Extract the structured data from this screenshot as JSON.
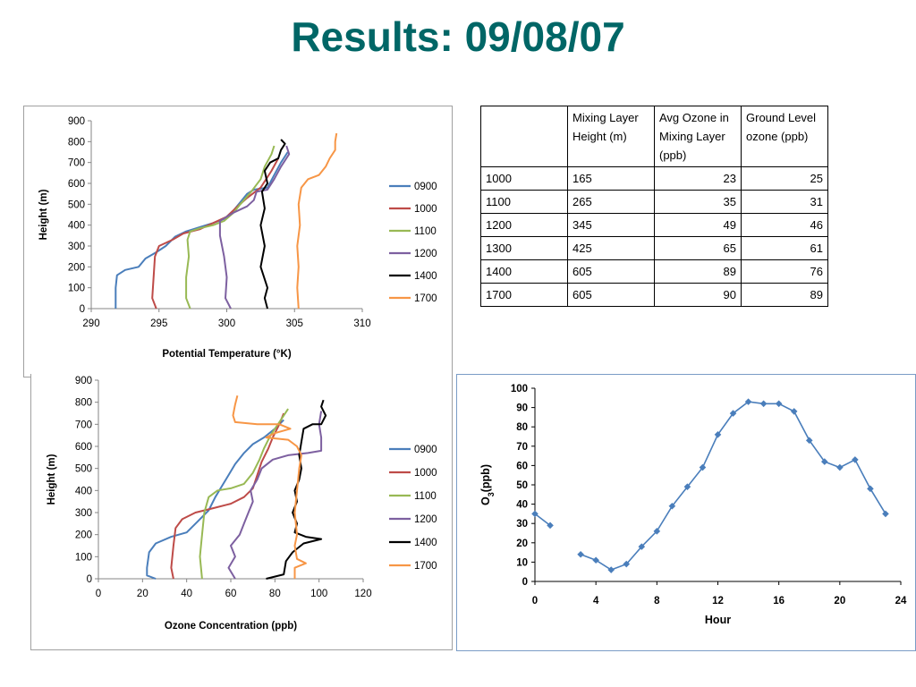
{
  "slide_title": "Results: 09/08/07",
  "table": {
    "headers": [
      "",
      "Mixing Layer Height (m)",
      "Avg Ozone in Mixing Layer (ppb)",
      "Ground Level  ozone (ppb)"
    ],
    "rows": [
      [
        "1000",
        "165",
        "23",
        "25"
      ],
      [
        "1100",
        "265",
        "35",
        "31"
      ],
      [
        "1200",
        "345",
        "49",
        "46"
      ],
      [
        "1300",
        "425",
        "65",
        "61"
      ],
      [
        "1400",
        "605",
        "89",
        "76"
      ],
      [
        "1700",
        "605",
        "90",
        "89"
      ]
    ]
  },
  "chart_data": [
    {
      "type": "line",
      "title": "",
      "xlabel": "Potential Temperature (°K)",
      "ylabel": "Height (m)",
      "xlim": [
        290,
        310
      ],
      "ylim": [
        0,
        900
      ],
      "xticks": [
        "290",
        "295",
        "300",
        "305",
        "310"
      ],
      "yticks": [
        "0",
        "100",
        "200",
        "300",
        "400",
        "500",
        "600",
        "700",
        "800",
        "900"
      ],
      "legend_position": "right",
      "series": [
        {
          "name": "0900",
          "color": "#4a7ebb",
          "points": [
            [
              291.8,
              0
            ],
            [
              291.8,
              100
            ],
            [
              291.9,
              160
            ],
            [
              292.5,
              185
            ],
            [
              293.5,
              200
            ],
            [
              294,
              240
            ],
            [
              294.8,
              270
            ],
            [
              295.5,
              300
            ],
            [
              296.2,
              345
            ],
            [
              297,
              370
            ],
            [
              298,
              390
            ],
            [
              299,
              410
            ],
            [
              299.8,
              430
            ],
            [
              300.5,
              470
            ],
            [
              301,
              510
            ],
            [
              301.5,
              550
            ],
            [
              302,
              570
            ],
            [
              303,
              580
            ],
            [
              303.5,
              640
            ],
            [
              304,
              700
            ],
            [
              304.5,
              750
            ]
          ]
        },
        {
          "name": "1000",
          "color": "#be4b48",
          "points": [
            [
              294.8,
              0
            ],
            [
              294.5,
              50
            ],
            [
              294.6,
              150
            ],
            [
              294.7,
              250
            ],
            [
              295,
              300
            ],
            [
              296,
              330
            ],
            [
              296.8,
              360
            ],
            [
              298,
              380
            ],
            [
              299,
              410
            ],
            [
              300,
              440
            ],
            [
              300.8,
              490
            ],
            [
              301.5,
              530
            ],
            [
              302.5,
              580
            ],
            [
              303.3,
              660
            ],
            [
              303.8,
              720
            ]
          ]
        },
        {
          "name": "1100",
          "color": "#98b954",
          "points": [
            [
              297.3,
              0
            ],
            [
              297,
              50
            ],
            [
              297,
              150
            ],
            [
              297.2,
              250
            ],
            [
              297.1,
              330
            ],
            [
              297.3,
              370
            ],
            [
              298,
              385
            ],
            [
              299,
              400
            ],
            [
              299.8,
              420
            ],
            [
              300.5,
              460
            ],
            [
              301,
              500
            ],
            [
              301.8,
              560
            ],
            [
              302.5,
              620
            ],
            [
              302.8,
              680
            ],
            [
              303.3,
              740
            ],
            [
              303.5,
              780
            ]
          ]
        },
        {
          "name": "1200",
          "color": "#7d60a0",
          "points": [
            [
              300.3,
              0
            ],
            [
              299.9,
              50
            ],
            [
              300,
              150
            ],
            [
              299.8,
              250
            ],
            [
              299.5,
              350
            ],
            [
              299.5,
              420
            ],
            [
              300.5,
              460
            ],
            [
              301.5,
              490
            ],
            [
              302,
              520
            ],
            [
              302.2,
              560
            ],
            [
              303,
              570
            ],
            [
              303.5,
              620
            ],
            [
              304,
              680
            ],
            [
              304.6,
              740
            ],
            [
              304.4,
              780
            ]
          ]
        },
        {
          "name": "1400",
          "color": "#000000",
          "points": [
            [
              303,
              0
            ],
            [
              302.8,
              50
            ],
            [
              303,
              100
            ],
            [
              302.5,
              200
            ],
            [
              302.8,
              300
            ],
            [
              302.5,
              400
            ],
            [
              302.8,
              480
            ],
            [
              302.6,
              560
            ],
            [
              303,
              600
            ],
            [
              302.8,
              660
            ],
            [
              303.2,
              700
            ],
            [
              303.8,
              720
            ],
            [
              304,
              760
            ],
            [
              304.3,
              790
            ],
            [
              304,
              810
            ]
          ]
        },
        {
          "name": "1700",
          "color": "#f79646",
          "points": [
            [
              305.3,
              0
            ],
            [
              305.2,
              100
            ],
            [
              305.3,
              200
            ],
            [
              305.2,
              300
            ],
            [
              305.4,
              400
            ],
            [
              305.3,
              500
            ],
            [
              305.5,
              580
            ],
            [
              306,
              620
            ],
            [
              306.8,
              640
            ],
            [
              307.3,
              680
            ],
            [
              307.6,
              720
            ],
            [
              308,
              760
            ],
            [
              308,
              800
            ],
            [
              308.1,
              840
            ]
          ]
        }
      ]
    },
    {
      "type": "line",
      "title": "",
      "xlabel": "Ozone Concentration (ppb)",
      "ylabel": "Height (m)",
      "xlim": [
        0,
        120
      ],
      "ylim": [
        0,
        900
      ],
      "xticks": [
        "0",
        "20",
        "40",
        "60",
        "80",
        "100",
        "120"
      ],
      "yticks": [
        "0",
        "100",
        "200",
        "300",
        "400",
        "500",
        "600",
        "700",
        "800",
        "900"
      ],
      "legend_position": "right",
      "series": [
        {
          "name": "0900",
          "color": "#4a7ebb",
          "points": [
            [
              26,
              0
            ],
            [
              22,
              15
            ],
            [
              22,
              50
            ],
            [
              23,
              120
            ],
            [
              26,
              160
            ],
            [
              33,
              190
            ],
            [
              40,
              210
            ],
            [
              45,
              260
            ],
            [
              50,
              310
            ],
            [
              53,
              370
            ],
            [
              56,
              420
            ],
            [
              59,
              470
            ],
            [
              62,
              520
            ],
            [
              66,
              570
            ],
            [
              70,
              610
            ],
            [
              75,
              640
            ],
            [
              80,
              680
            ],
            [
              84,
              720
            ]
          ]
        },
        {
          "name": "1000",
          "color": "#be4b48",
          "points": [
            [
              34,
              0
            ],
            [
              33,
              50
            ],
            [
              34,
              150
            ],
            [
              35,
              230
            ],
            [
              38,
              270
            ],
            [
              44,
              300
            ],
            [
              52,
              320
            ],
            [
              60,
              340
            ],
            [
              66,
              370
            ],
            [
              70,
              410
            ],
            [
              72,
              470
            ],
            [
              74,
              530
            ],
            [
              77,
              590
            ],
            [
              79,
              640
            ],
            [
              82,
              700
            ],
            [
              84,
              750
            ]
          ]
        },
        {
          "name": "1100",
          "color": "#98b954",
          "points": [
            [
              47,
              0
            ],
            [
              46,
              100
            ],
            [
              47,
              200
            ],
            [
              48,
              300
            ],
            [
              50,
              370
            ],
            [
              54,
              400
            ],
            [
              60,
              410
            ],
            [
              66,
              430
            ],
            [
              70,
              480
            ],
            [
              73,
              540
            ],
            [
              75,
              590
            ],
            [
              78,
              650
            ],
            [
              82,
              710
            ],
            [
              86,
              770
            ]
          ]
        },
        {
          "name": "1200",
          "color": "#7d60a0",
          "points": [
            [
              62,
              0
            ],
            [
              59,
              50
            ],
            [
              62,
              100
            ],
            [
              60,
              150
            ],
            [
              64,
              200
            ],
            [
              66,
              250
            ],
            [
              68,
              300
            ],
            [
              70,
              350
            ],
            [
              69,
              400
            ],
            [
              72,
              450
            ],
            [
              74,
              500
            ],
            [
              79,
              540
            ],
            [
              86,
              560
            ],
            [
              95,
              570
            ],
            [
              101,
              580
            ],
            [
              101,
              640
            ],
            [
              100,
              700
            ],
            [
              101,
              760
            ]
          ]
        },
        {
          "name": "1400",
          "color": "#000000",
          "points": [
            [
              76,
              0
            ],
            [
              84,
              20
            ],
            [
              85,
              80
            ],
            [
              88,
              120
            ],
            [
              93,
              160
            ],
            [
              101,
              180
            ],
            [
              94,
              190
            ],
            [
              89,
              210
            ],
            [
              90,
              250
            ],
            [
              88,
              300
            ],
            [
              90,
              350
            ],
            [
              89,
              400
            ],
            [
              91,
              450
            ],
            [
              92,
              500
            ],
            [
              91,
              560
            ],
            [
              92,
              620
            ],
            [
              93,
              680
            ],
            [
              97,
              700
            ],
            [
              101,
              700
            ],
            [
              103,
              740
            ],
            [
              101,
              780
            ],
            [
              102,
              810
            ]
          ]
        },
        {
          "name": "1700",
          "color": "#f79646",
          "points": [
            [
              89,
              0
            ],
            [
              89,
              50
            ],
            [
              94,
              70
            ],
            [
              90,
              90
            ],
            [
              89,
              150
            ],
            [
              90,
              200
            ],
            [
              89,
              300
            ],
            [
              90,
              400
            ],
            [
              91,
              500
            ],
            [
              92,
              560
            ],
            [
              90,
              600
            ],
            [
              86,
              630
            ],
            [
              76,
              640
            ],
            [
              80,
              660
            ],
            [
              87,
              680
            ],
            [
              82,
              700
            ],
            [
              72,
              700
            ],
            [
              62,
              710
            ],
            [
              61,
              740
            ],
            [
              62,
              790
            ],
            [
              63,
              830
            ]
          ]
        }
      ]
    },
    {
      "type": "line",
      "title": "",
      "xlabel": "Hour",
      "ylabel": "O3 (ppb)",
      "xlim": [
        0,
        24
      ],
      "ylim": [
        0,
        100
      ],
      "xticks": [
        "0",
        "4",
        "8",
        "12",
        "16",
        "20",
        "24"
      ],
      "yticks": [
        "0",
        "10",
        "20",
        "30",
        "40",
        "50",
        "60",
        "70",
        "80",
        "90",
        "100"
      ],
      "series": [
        {
          "name": "",
          "color": "#4a7ebb",
          "segments": [
            [
              [
                0,
                35
              ],
              [
                1,
                29
              ]
            ],
            [
              [
                3,
                14
              ],
              [
                4,
                11
              ],
              [
                5,
                6
              ],
              [
                6,
                9
              ],
              [
                7,
                18
              ],
              [
                8,
                26
              ],
              [
                9,
                39
              ],
              [
                10,
                49
              ],
              [
                11,
                59
              ],
              [
                12,
                76
              ],
              [
                13,
                87
              ],
              [
                14,
                93
              ],
              [
                15,
                92
              ],
              [
                16,
                92
              ],
              [
                17,
                88
              ],
              [
                18,
                73
              ],
              [
                19,
                62
              ],
              [
                20,
                59
              ],
              [
                21,
                63
              ],
              [
                22,
                48
              ],
              [
                23,
                35
              ]
            ]
          ]
        }
      ]
    }
  ]
}
